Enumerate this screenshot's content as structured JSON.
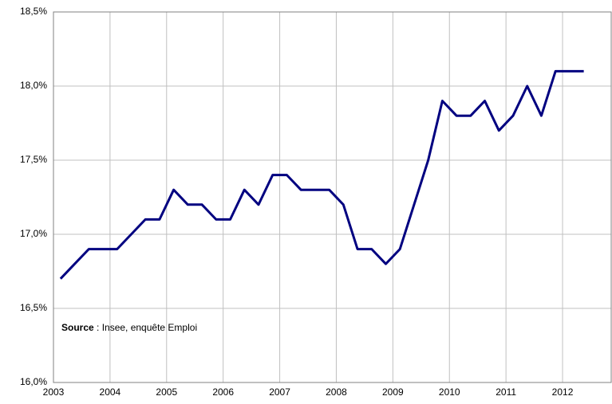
{
  "chart_data": {
    "type": "line",
    "x": [
      2003.125,
      2003.375,
      2003.625,
      2003.875,
      2004.125,
      2004.375,
      2004.625,
      2004.875,
      2005.125,
      2005.375,
      2005.625,
      2005.875,
      2006.125,
      2006.375,
      2006.625,
      2006.875,
      2007.125,
      2007.375,
      2007.625,
      2007.875,
      2008.125,
      2008.375,
      2008.625,
      2008.875,
      2009.125,
      2009.375,
      2009.625,
      2009.875,
      2010.125,
      2010.375,
      2010.625,
      2010.875,
      2011.125,
      2011.375,
      2011.625,
      2011.875,
      2012.125,
      2012.375
    ],
    "series": [
      {
        "color": "#000080",
        "values": [
          16.7,
          16.8,
          16.9,
          16.9,
          16.9,
          17.0,
          17.1,
          17.1,
          17.3,
          17.2,
          17.2,
          17.1,
          17.1,
          17.3,
          17.2,
          17.4,
          17.4,
          17.3,
          17.3,
          17.3,
          17.2,
          16.9,
          16.9,
          16.8,
          16.9,
          17.2,
          17.5,
          17.9,
          17.8,
          17.8,
          17.9,
          17.7,
          17.8,
          18.0,
          17.8,
          18.1,
          18.1,
          18.1
        ]
      }
    ],
    "xlim": [
      2003,
      2012.86
    ],
    "xticks": [
      2003,
      2004,
      2005,
      2006,
      2007,
      2008,
      2009,
      2010,
      2011,
      2012
    ],
    "ylim": [
      16.0,
      18.5
    ],
    "yticks": [
      {
        "value": 16.0,
        "label": "16,0%"
      },
      {
        "value": 16.5,
        "label": "16,5%"
      },
      {
        "value": 17.0,
        "label": "17,0%"
      },
      {
        "value": 17.5,
        "label": "17,5%"
      },
      {
        "value": 18.0,
        "label": "18,0%"
      },
      {
        "value": 18.5,
        "label": "18,5%"
      }
    ],
    "grid": true,
    "source_label": "Source",
    "source_text": " : Insee, enquête Emploi"
  }
}
